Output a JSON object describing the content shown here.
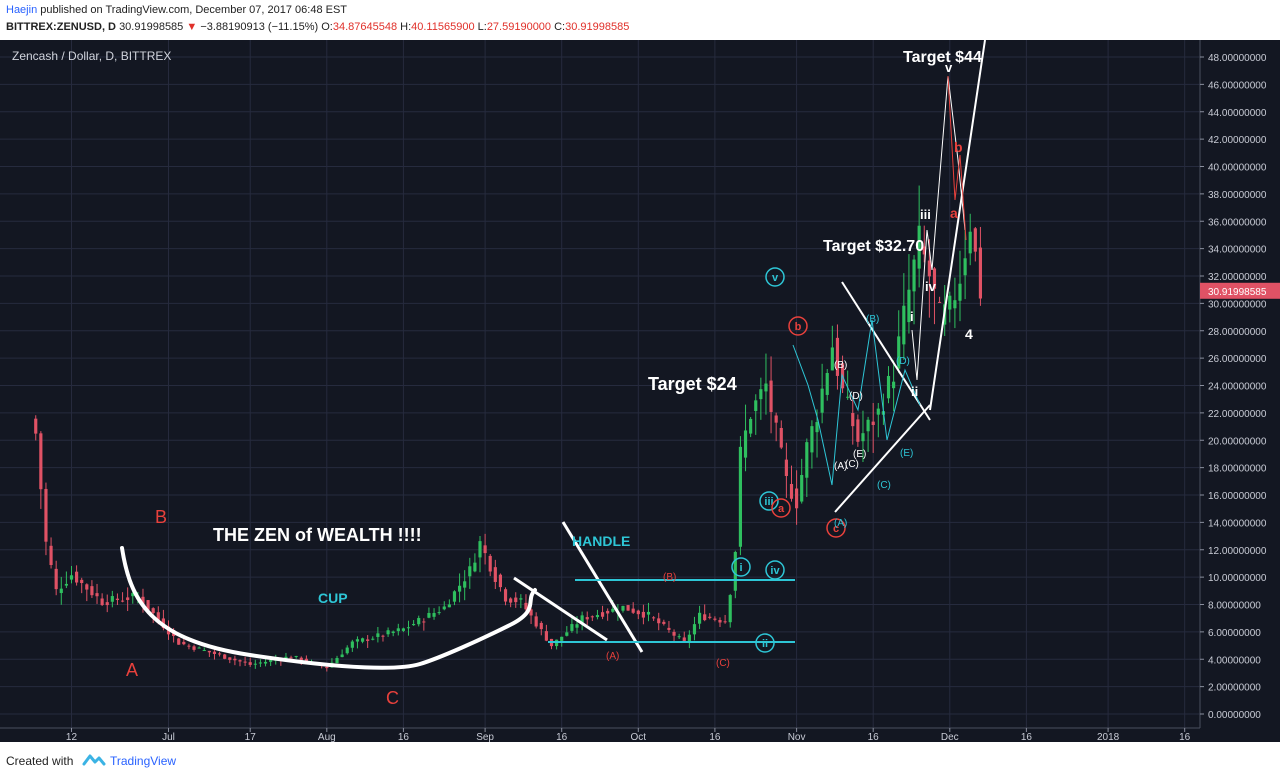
{
  "header": {
    "author": "Haejin",
    "published": "published on TradingView.com, December 07, 2017 06:48 EST",
    "symbol": "BITTREX:ZENUSD, D",
    "last": "30.91998585",
    "change": "−3.88190913 (−11.15%)",
    "o_label": "O:",
    "o_value": "34.87645548",
    "h_label": "H:",
    "h_value": "40.11565900",
    "l_label": "L:",
    "l_value": "27.59190000",
    "c_label": "C:",
    "c_value": "30.91998585"
  },
  "footer": {
    "created": "Created with",
    "brand": "TradingView"
  },
  "colors": {
    "background": "#131722",
    "grid": "#262b3e",
    "up": "#2fbf5f",
    "down": "#e05265",
    "annotation_white": "#ffffff",
    "annotation_cyan": "#2ec6d6",
    "annotation_red": "#e8413c",
    "price_tag": "#e05265"
  },
  "chart_data": {
    "type": "candlestick",
    "title": "Zencash / Dollar, D, BITTREX",
    "y_axis_position": "right",
    "ylim": [
      0,
      48
    ],
    "y_ticks": [
      "48.00000000",
      "46.00000000",
      "44.00000000",
      "42.00000000",
      "40.00000000",
      "38.00000000",
      "36.00000000",
      "34.00000000",
      "32.00000000",
      "30.00000000",
      "28.00000000",
      "26.00000000",
      "24.00000000",
      "22.00000000",
      "20.00000000",
      "18.00000000",
      "16.00000000",
      "14.00000000",
      "12.00000000",
      "10.00000000",
      "8.00000000",
      "6.00000000",
      "4.00000000",
      "2.00000000",
      "0.00000000"
    ],
    "x_ticks": [
      {
        "label": "12",
        "date": "2017-06-12"
      },
      {
        "label": "Jul",
        "date": "2017-07-01"
      },
      {
        "label": "17",
        "date": "2017-07-17"
      },
      {
        "label": "Aug",
        "date": "2017-08-01"
      },
      {
        "label": "16",
        "date": "2017-08-16"
      },
      {
        "label": "Sep",
        "date": "2017-09-01"
      },
      {
        "label": "16",
        "date": "2017-09-16"
      },
      {
        "label": "Oct",
        "date": "2017-10-01"
      },
      {
        "label": "16",
        "date": "2017-10-16"
      },
      {
        "label": "Nov",
        "date": "2017-11-01"
      },
      {
        "label": "16",
        "date": "2017-11-16"
      },
      {
        "label": "Dec",
        "date": "2017-12-01"
      },
      {
        "label": "16",
        "date": "2017-12-16"
      },
      {
        "label": "2018",
        "date": "2018-01-01"
      },
      {
        "label": "16",
        "date": "2018-01-16"
      }
    ],
    "x_range": [
      "2017-05-29",
      "2018-01-19"
    ],
    "last_price": "30.91998585",
    "close_keypoints": [
      [
        "2017-06-05",
        20.5
      ],
      [
        "2017-06-07",
        12.5
      ],
      [
        "2017-06-09",
        9.0
      ],
      [
        "2017-06-12",
        10.2
      ],
      [
        "2017-06-18",
        8.2
      ],
      [
        "2017-06-25",
        8.6
      ],
      [
        "2017-07-03",
        5.2
      ],
      [
        "2017-07-17",
        3.6
      ],
      [
        "2017-07-25",
        4.2
      ],
      [
        "2017-08-01",
        3.4
      ],
      [
        "2017-08-06",
        5.2
      ],
      [
        "2017-08-16",
        6.2
      ],
      [
        "2017-08-24",
        7.8
      ],
      [
        "2017-08-29",
        10.5
      ],
      [
        "2017-08-31",
        12.5
      ],
      [
        "2017-09-03",
        10.0
      ],
      [
        "2017-09-05",
        8.5
      ],
      [
        "2017-09-08",
        8.2
      ],
      [
        "2017-09-14",
        5.0
      ],
      [
        "2017-09-20",
        7.0
      ],
      [
        "2017-09-28",
        7.8
      ],
      [
        "2017-10-03",
        7.2
      ],
      [
        "2017-10-10",
        5.2
      ],
      [
        "2017-10-13",
        7.2
      ],
      [
        "2017-10-18",
        6.8
      ],
      [
        "2017-10-19",
        9.0
      ],
      [
        "2017-10-20",
        12.0
      ],
      [
        "2017-10-21",
        19.0
      ],
      [
        "2017-10-23",
        22.0
      ],
      [
        "2017-10-26",
        24.0
      ],
      [
        "2017-10-30",
        17.0
      ],
      [
        "2017-11-01",
        15.5
      ],
      [
        "2017-11-03",
        19.5
      ],
      [
        "2017-11-05",
        22.0
      ],
      [
        "2017-11-08",
        27.0
      ],
      [
        "2017-11-10",
        23.5
      ],
      [
        "2017-11-13",
        20.0
      ],
      [
        "2017-11-17",
        22.0
      ],
      [
        "2017-11-20",
        25.0
      ],
      [
        "2017-11-22",
        29.0
      ],
      [
        "2017-11-25",
        34.5
      ],
      [
        "2017-11-27",
        32.0
      ],
      [
        "2017-11-29",
        29.0
      ],
      [
        "2017-12-01",
        29.5
      ],
      [
        "2017-12-03",
        32.0
      ],
      [
        "2017-12-05",
        36.0
      ],
      [
        "2017-12-07",
        30.92
      ]
    ],
    "annotations": {
      "title_text": "THE ZEN of WEALTH !!!!",
      "cup": "CUP",
      "handle": "HANDLE",
      "target_24": "Target $24",
      "target_3270": "Target $32.70",
      "target_44": "Target $44",
      "wave_a": "A",
      "wave_b": "B",
      "wave_c": "C",
      "circ_v": "v",
      "circ_iii": "iii",
      "circ_iv": "iv",
      "circ_i": "i",
      "circ_ii": "ii",
      "red_b": "b",
      "red_a": "a",
      "red_c": "c",
      "s_A": "(A)",
      "s_B": "(B)",
      "s_C": "(C)",
      "c_A": "(A)",
      "c_B": "(B)",
      "c_C": "(C)",
      "c_D": "(D)",
      "c_E": "(E)",
      "w_A": "(A)",
      "w_B": "(B)",
      "w_C": "(C)",
      "w_D": "(D)",
      "w_E": "(E)",
      "r_i": "i",
      "r_ii": "ii",
      "r_iii": "iii",
      "r_iv": "iv",
      "r_v": "v",
      "r_4": "4",
      "r_b": "b",
      "r_a": "a"
    }
  }
}
